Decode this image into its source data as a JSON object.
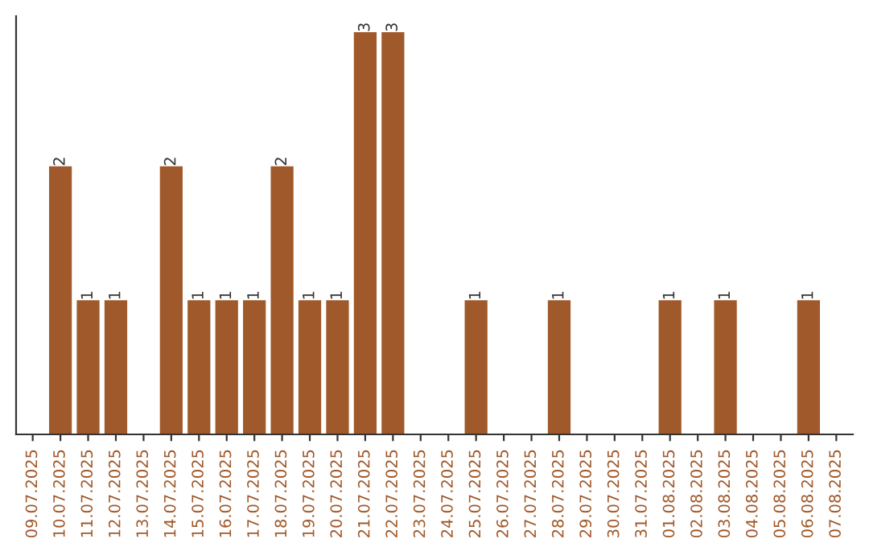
{
  "chart_data": {
    "type": "bar",
    "categories": [
      "09.07.2025",
      "10.07.2025",
      "11.07.2025",
      "12.07.2025",
      "13.07.2025",
      "14.07.2025",
      "15.07.2025",
      "16.07.2025",
      "17.07.2025",
      "18.07.2025",
      "19.07.2025",
      "20.07.2025",
      "21.07.2025",
      "22.07.2025",
      "23.07.2025",
      "24.07.2025",
      "25.07.2025",
      "26.07.2025",
      "27.07.2025",
      "28.07.2025",
      "29.07.2025",
      "30.07.2025",
      "31.07.2025",
      "01.08.2025",
      "02.08.2025",
      "03.08.2025",
      "04.08.2025",
      "05.08.2025",
      "06.08.2025",
      "07.08.2025"
    ],
    "values": [
      0,
      2,
      1,
      1,
      0,
      2,
      1,
      1,
      1,
      2,
      1,
      1,
      3,
      3,
      0,
      0,
      1,
      0,
      0,
      1,
      0,
      0,
      0,
      1,
      0,
      1,
      0,
      0,
      1,
      0
    ],
    "value_labels": [
      null,
      "2",
      "1",
      "1",
      null,
      "2",
      "1",
      "1",
      "1",
      "2",
      "1",
      "1",
      "3",
      "3",
      null,
      null,
      "1",
      null,
      null,
      "1",
      null,
      null,
      null,
      "1",
      null,
      "1",
      null,
      null,
      "1",
      null
    ],
    "color": "#a0592a",
    "tick_labels": "x",
    "grid": false,
    "legend": false
  }
}
